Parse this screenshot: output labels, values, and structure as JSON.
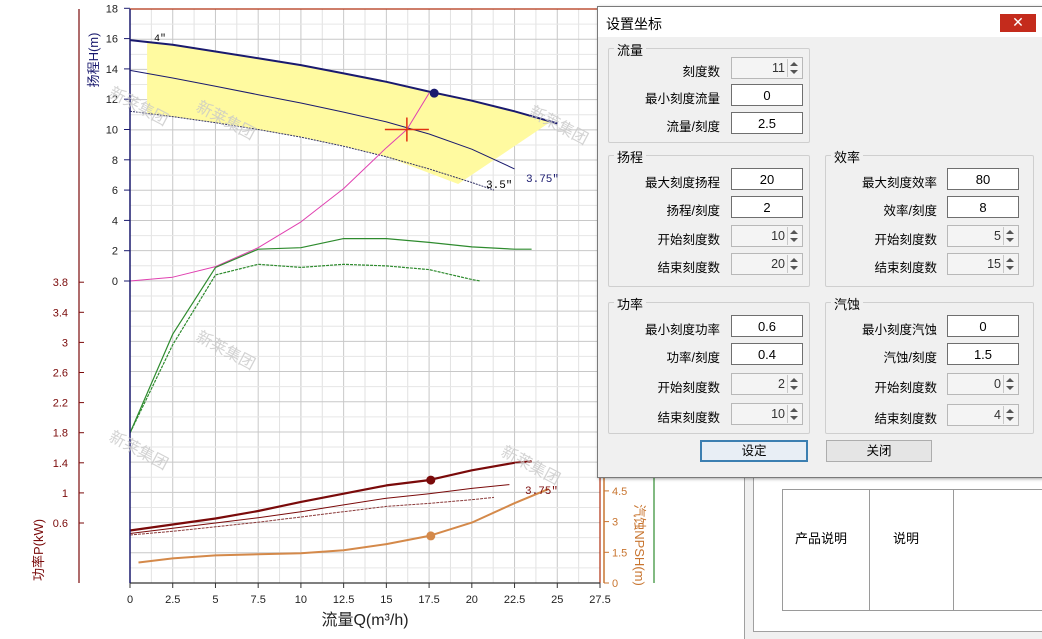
{
  "chart": {
    "head_axis_label": "扬程H(m)",
    "head_ticks": [
      "18",
      "16",
      "14",
      "12",
      "10",
      "8",
      "6",
      "4",
      "2",
      "0"
    ],
    "power_axis_label": "功率P(kW)",
    "power_ticks": [
      "3.8",
      "3.4",
      "3",
      "2.6",
      "2.2",
      "1.8",
      "1.4",
      "1",
      "0.6"
    ],
    "npsh_axis_label": "汽蚀NPSH(m)",
    "npsh_ticks": [
      "4.5",
      "3",
      "1.5",
      "0"
    ],
    "flow_axis_label": "流量Q(m³/h)",
    "flow_ticks": [
      "0",
      "2.5",
      "5",
      "7.5",
      "10",
      "12.5",
      "15",
      "17.5",
      "20",
      "22.5",
      "25",
      "27.5"
    ],
    "curve_labels": {
      "impeller_max": "4\"",
      "impeller_min": "3.5\"",
      "impeller_mid": "3.75\"",
      "power_mid": "3.75\""
    },
    "watermark": "新莱集团",
    "colors": {
      "head": "#1a1a6e",
      "efficiency": "#2e8b2e",
      "power": "#7a0a0a",
      "npsh": "#d4894a",
      "system": "#e040b0",
      "range_fill": "#fffaa0",
      "axis_head": "#1a1a6e",
      "axis_power": "#7a0a0a",
      "axis_npsh": "#c87530",
      "operating_point": "#e03010"
    }
  },
  "dialog": {
    "title": "设置坐标",
    "close_icon": "close-icon",
    "flow_group": {
      "title": "流量",
      "fields": [
        {
          "label": "刻度数",
          "value": "11",
          "type": "spin"
        },
        {
          "label": "最小刻度流量",
          "value": "0",
          "type": "text"
        },
        {
          "label": "流量/刻度",
          "value": "2.5",
          "type": "text"
        }
      ]
    },
    "head_group": {
      "title": "扬程",
      "fields": [
        {
          "label": "最大刻度扬程",
          "value": "20",
          "type": "text"
        },
        {
          "label": "扬程/刻度",
          "value": "2",
          "type": "text"
        },
        {
          "label": "开始刻度数",
          "value": "10",
          "type": "spin"
        },
        {
          "label": "结束刻度数",
          "value": "20",
          "type": "spin"
        }
      ]
    },
    "efficiency_group": {
      "title": "效率",
      "fields": [
        {
          "label": "最大刻度效率",
          "value": "80",
          "type": "text"
        },
        {
          "label": "效率/刻度",
          "value": "8",
          "type": "text"
        },
        {
          "label": "开始刻度数",
          "value": "5",
          "type": "spin"
        },
        {
          "label": "结束刻度数",
          "value": "15",
          "type": "spin"
        }
      ]
    },
    "power_group": {
      "title": "功率",
      "fields": [
        {
          "label": "最小刻度功率",
          "value": "0.6",
          "type": "text"
        },
        {
          "label": "功率/刻度",
          "value": "0.4",
          "type": "text"
        },
        {
          "label": "开始刻度数",
          "value": "2",
          "type": "spin"
        },
        {
          "label": "结束刻度数",
          "value": "10",
          "type": "spin"
        }
      ]
    },
    "npsh_group": {
      "title": "汽蚀",
      "fields": [
        {
          "label": "最小刻度汽蚀",
          "value": "0",
          "type": "text"
        },
        {
          "label": "汽蚀/刻度",
          "value": "1.5",
          "type": "text"
        },
        {
          "label": "开始刻度数",
          "value": "0",
          "type": "spin"
        },
        {
          "label": "结束刻度数",
          "value": "4",
          "type": "spin"
        }
      ]
    },
    "ok_label": "设定",
    "close_label": "关闭"
  },
  "background_table": {
    "col1": "产品说明",
    "col2": "说明"
  },
  "chart_data": {
    "type": "line",
    "xlabel": "流量Q(m³/h)",
    "ylabel": "扬程H(m)",
    "xlim": [
      0,
      27.5
    ],
    "ylim_head": [
      0,
      18
    ],
    "ylim_power": [
      0.6,
      3.8
    ],
    "ylim_npsh": [
      0,
      4.5
    ],
    "series": [
      {
        "name": "4\"",
        "axis": "head",
        "x": [
          0,
          2.5,
          5,
          7.5,
          10,
          12.5,
          15,
          17.5,
          20,
          22.5,
          25
        ],
        "y": [
          15.9,
          15.6,
          15.15,
          14.7,
          14.25,
          13.7,
          13.15,
          12.5,
          11.9,
          11.2,
          10.4
        ]
      },
      {
        "name": "3.75\"",
        "axis": "head",
        "x": [
          0,
          2.5,
          5,
          7.5,
          10,
          12.5,
          15,
          17.5,
          20,
          22.5
        ],
        "y": [
          13.9,
          13.4,
          12.85,
          12.3,
          11.75,
          11.15,
          10.5,
          9.7,
          8.7,
          7.4
        ]
      },
      {
        "name": "3.5\"",
        "axis": "head",
        "x": [
          0,
          2.5,
          5,
          7.5,
          10,
          12.5,
          15,
          17.5,
          20,
          21.3
        ],
        "y": [
          11.2,
          10.85,
          10.45,
          10.0,
          9.5,
          8.9,
          8.2,
          7.4,
          6.5,
          6.0
        ]
      },
      {
        "axis": "head",
        "x": [
          0,
          2.5,
          5,
          7.5,
          10,
          12.5,
          15,
          16.2,
          17.5
        ],
        "y": [
          0,
          0.25,
          0.95,
          2.2,
          3.9,
          6.1,
          8.8,
          10.0,
          12.4
        ]
      },
      {
        "axis": "efficiency_head",
        "x": [
          0,
          2.5,
          5,
          7.5,
          10,
          12.5,
          15,
          17.5,
          20,
          22.5,
          23.5
        ],
        "y": [
          -10,
          -3.5,
          0.9,
          2.1,
          2.2,
          2.8,
          2.8,
          2.55,
          2.25,
          2.1,
          2.1
        ]
      },
      {
        "axis": "efficiency_head",
        "x": [
          0,
          2.5,
          5,
          7.5,
          10,
          12.5,
          15,
          17.5,
          20,
          20.5
        ],
        "y": [
          -10,
          -4.2,
          0.4,
          1.1,
          0.9,
          1.1,
          1.0,
          0.75,
          0.1,
          0.0
        ]
      },
      {
        "name": "3.75\"",
        "axis": "power",
        "x": [
          0,
          2.5,
          5,
          7.5,
          10,
          12.5,
          15,
          17.5,
          20,
          22.5,
          23.5
        ],
        "y": [
          0.5,
          0.58,
          0.66,
          0.76,
          0.88,
          0.99,
          1.1,
          1.17,
          1.3,
          1.4,
          1.42
        ]
      },
      {
        "axis": "power",
        "x": [
          0,
          2.5,
          5,
          7.5,
          10,
          12.5,
          15,
          17.5,
          20,
          22.2
        ],
        "y": [
          0.46,
          0.53,
          0.6,
          0.67,
          0.75,
          0.84,
          0.93,
          0.99,
          1.06,
          1.11
        ]
      },
      {
        "axis": "power",
        "x": [
          0,
          2.5,
          5,
          7.5,
          10,
          12.5,
          15,
          17.5,
          20,
          21.3
        ],
        "y": [
          0.44,
          0.49,
          0.55,
          0.61,
          0.68,
          0.75,
          0.82,
          0.86,
          0.91,
          0.94
        ]
      },
      {
        "axis": "npsh",
        "x": [
          0.5,
          2.5,
          5,
          7.5,
          10,
          12.5,
          15,
          17.5,
          20,
          22.5,
          24.5
        ],
        "y": [
          1.0,
          1.2,
          1.35,
          1.4,
          1.45,
          1.6,
          1.9,
          2.3,
          2.95,
          3.9,
          4.6
        ]
      }
    ],
    "operating_points": [
      {
        "axis": "head",
        "x": 17.8,
        "y": 12.4
      },
      {
        "axis": "power",
        "x": 17.6,
        "y": 1.17
      },
      {
        "axis": "npsh",
        "x": 17.6,
        "y": 2.3
      },
      {
        "axis": "head",
        "x": 16.2,
        "y": 10.0
      }
    ],
    "grid": true
  }
}
